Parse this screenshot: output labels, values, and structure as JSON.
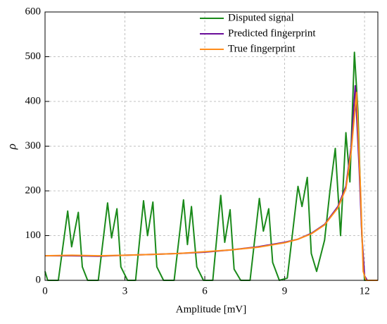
{
  "chart_data": {
    "type": "line",
    "xlabel": "Amplitude [mV]",
    "ylabel": "ρ",
    "xlim": [
      0,
      12.5
    ],
    "xticks": [
      0,
      3,
      6,
      9,
      12
    ],
    "ylim": [
      0,
      600
    ],
    "yticks": [
      0,
      100,
      200,
      300,
      400,
      500,
      600
    ],
    "grid": true,
    "legend": "upper right",
    "series": [
      {
        "name": "Disputed signal",
        "color": "#1a8a1a",
        "x": [
          0,
          0.1,
          0.5,
          0.85,
          1.0,
          1.25,
          1.4,
          1.6,
          2.0,
          2.35,
          2.5,
          2.7,
          2.85,
          3.1,
          3.4,
          3.7,
          3.85,
          4.05,
          4.2,
          4.45,
          4.85,
          5.2,
          5.35,
          5.5,
          5.7,
          5.95,
          6.3,
          6.6,
          6.75,
          6.95,
          7.1,
          7.35,
          7.7,
          8.05,
          8.2,
          8.4,
          8.55,
          8.8,
          9.1,
          9.5,
          9.65,
          9.85,
          10.0,
          10.2,
          10.5,
          10.7,
          10.9,
          11.1,
          11.3,
          11.45,
          11.62,
          11.75,
          11.9,
          12.0,
          12.5
        ],
        "values": [
          20,
          0,
          0,
          155,
          75,
          152,
          30,
          0,
          0,
          173,
          95,
          160,
          30,
          0,
          0,
          178,
          100,
          175,
          30,
          0,
          0,
          180,
          80,
          165,
          30,
          0,
          0,
          190,
          85,
          158,
          25,
          0,
          0,
          183,
          110,
          160,
          40,
          0,
          5,
          210,
          165,
          230,
          60,
          20,
          90,
          200,
          295,
          100,
          330,
          220,
          510,
          380,
          100,
          0,
          0
        ]
      },
      {
        "name": "Predicted fingerprint",
        "color": "#6a0d9a",
        "x": [
          0,
          1,
          2,
          3,
          4,
          5,
          6,
          7,
          8,
          9,
          9.5,
          10,
          10.5,
          11,
          11.3,
          11.5,
          11.65,
          11.8,
          11.9,
          12.0,
          12.1,
          12.5
        ],
        "values": [
          55,
          55,
          54,
          56,
          58,
          60,
          63,
          68,
          75,
          85,
          92,
          105,
          125,
          165,
          210,
          300,
          435,
          250,
          100,
          10,
          0,
          0
        ]
      },
      {
        "name": "True fingerprint",
        "color": "#ff8c1a",
        "x": [
          0,
          1,
          2,
          3,
          4,
          5,
          6,
          7,
          8,
          9,
          9.5,
          10,
          10.5,
          11,
          11.3,
          11.5,
          11.7,
          11.85,
          11.95,
          12.05,
          12.5
        ],
        "values": [
          55,
          56,
          55,
          56,
          58,
          60,
          64,
          68,
          74,
          84,
          92,
          104,
          124,
          162,
          205,
          290,
          420,
          200,
          20,
          0,
          0
        ]
      }
    ]
  }
}
